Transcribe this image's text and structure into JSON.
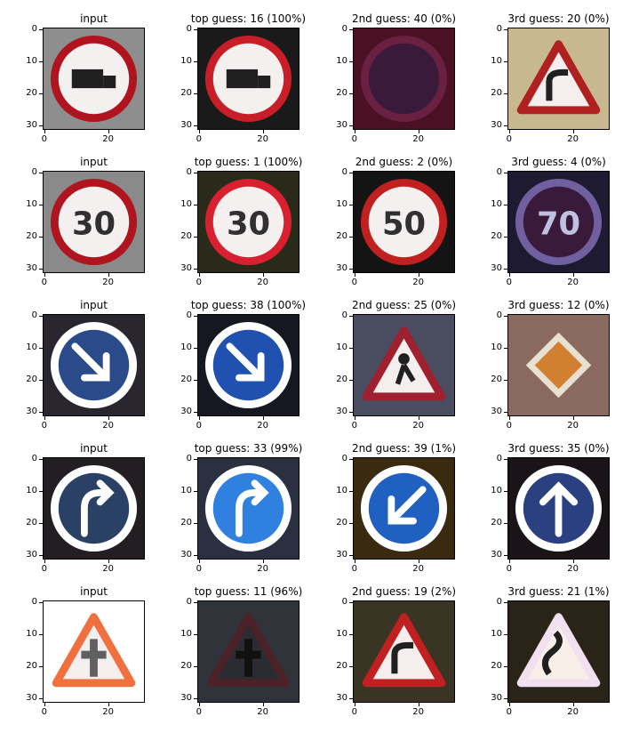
{
  "figure": {
    "axis": {
      "y_ticks": [
        "0",
        "10",
        "20",
        "30"
      ],
      "x_ticks": [
        "0",
        "20"
      ]
    },
    "rows": [
      {
        "panels": [
          {
            "title": "input",
            "bg": "#8e8e8e",
            "shape": "circle-red",
            "glyph": "truck",
            "fg": "#b0141e"
          },
          {
            "title": "top guess: 16 (100%)",
            "bg": "#1a1a1a",
            "shape": "circle-red",
            "glyph": "truck",
            "fg": "#c81e28"
          },
          {
            "title": "2nd guess: 40 (0%)",
            "bg": "#4a1024",
            "shape": "circle-dark",
            "glyph": "",
            "fg": "#6a2040"
          },
          {
            "title": "3rd guess: 20 (0%)",
            "bg": "#c8b890",
            "shape": "triangle-red",
            "glyph": "curve",
            "fg": "#b02020"
          }
        ]
      },
      {
        "panels": [
          {
            "title": "input",
            "bg": "#8a8a8a",
            "shape": "circle-red",
            "glyph": "30",
            "fg": "#b0141e"
          },
          {
            "title": "top guess: 1 (100%)",
            "bg": "#2a2a1a",
            "shape": "circle-red",
            "glyph": "30",
            "fg": "#d82030"
          },
          {
            "title": "2nd guess: 2 (0%)",
            "bg": "#141414",
            "shape": "circle-red",
            "glyph": "50",
            "fg": "#c02020"
          },
          {
            "title": "3rd guess: 4 (0%)",
            "bg": "#1e1a32",
            "shape": "circle-dark",
            "glyph": "70",
            "fg": "#7060a0"
          }
        ]
      },
      {
        "panels": [
          {
            "title": "input",
            "bg": "#2a2630",
            "shape": "circle-blue",
            "glyph": "arrow-dr",
            "fg": "#2a4a8a"
          },
          {
            "title": "top guess: 38 (100%)",
            "bg": "#151820",
            "shape": "circle-blue",
            "glyph": "arrow-dr",
            "fg": "#2050b0"
          },
          {
            "title": "2nd guess: 25 (0%)",
            "bg": "#4a4c60",
            "shape": "triangle-red",
            "glyph": "worker",
            "fg": "#a02030"
          },
          {
            "title": "3rd guess: 12 (0%)",
            "bg": "#8a6a60",
            "shape": "diamond",
            "glyph": "",
            "fg": "#c07030"
          }
        ]
      },
      {
        "panels": [
          {
            "title": "input",
            "bg": "#221e22",
            "shape": "circle-blue",
            "glyph": "turn-r",
            "fg": "#2a4064"
          },
          {
            "title": "top guess: 33 (99%)",
            "bg": "#2a3040",
            "shape": "circle-blue",
            "glyph": "turn-r",
            "fg": "#3080e0"
          },
          {
            "title": "2nd guess: 39 (1%)",
            "bg": "#3a2a10",
            "shape": "circle-blue",
            "glyph": "arrow-dl",
            "fg": "#2060c0"
          },
          {
            "title": "3rd guess: 35 (0%)",
            "bg": "#1a1418",
            "shape": "circle-blue",
            "glyph": "arrow-up",
            "fg": "#2a4080"
          }
        ]
      },
      {
        "panels": [
          {
            "title": "input",
            "bg": "#ffffff",
            "shape": "triangle-orange",
            "glyph": "cross",
            "fg": "#f07040"
          },
          {
            "title": "top guess: 11 (96%)",
            "bg": "#30343a",
            "shape": "triangle-dark",
            "glyph": "cross",
            "fg": "#4a2228"
          },
          {
            "title": "2nd guess: 19 (2%)",
            "bg": "#3a3424",
            "shape": "triangle-red",
            "glyph": "curve",
            "fg": "#c02020"
          },
          {
            "title": "3rd guess: 21 (1%)",
            "bg": "#2a2418",
            "shape": "triangle-light",
            "glyph": "double-curve",
            "fg": "#e0c0d0"
          }
        ]
      }
    ]
  }
}
